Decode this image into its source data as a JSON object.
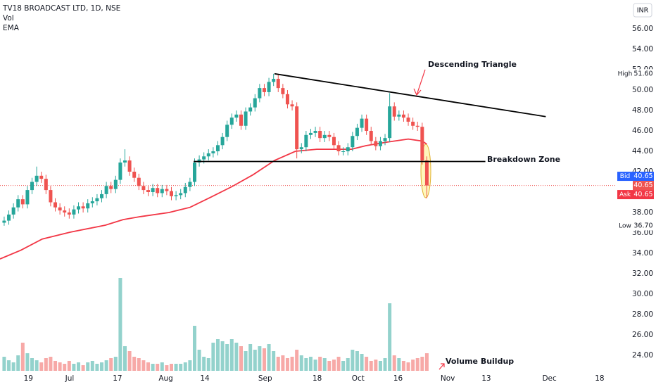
{
  "chart_data": {
    "type": "candlestick",
    "title": "TV18 BROADCAST LTD, 1D, NSE",
    "indicators": [
      "Vol",
      "EMA"
    ],
    "currency": "INR",
    "x": [
      0,
      1,
      2,
      3,
      4,
      5,
      6,
      7,
      8,
      9,
      10,
      11,
      12,
      13,
      14,
      15,
      16,
      17,
      18,
      19,
      20,
      21,
      22,
      23,
      24,
      25,
      26,
      27,
      28,
      29,
      30,
      31,
      32,
      33,
      34,
      35,
      36,
      37,
      38,
      39,
      40,
      41,
      42,
      43,
      44,
      45,
      46,
      47,
      48,
      49,
      50,
      51,
      52,
      53,
      54,
      55,
      56,
      57,
      58,
      59,
      60,
      61,
      62,
      63,
      64,
      65,
      66,
      67,
      68,
      69,
      70,
      71,
      72,
      73,
      74,
      75,
      76,
      77,
      78,
      79,
      80,
      81,
      82,
      83,
      84,
      85,
      86,
      87,
      88,
      89,
      90,
      91
    ],
    "open": [
      37.0,
      37.2,
      37.8,
      38.5,
      39.3,
      38.8,
      40.2,
      41.0,
      41.6,
      41.3,
      40.2,
      39.0,
      38.5,
      38.2,
      38.0,
      37.8,
      38.3,
      38.6,
      38.4,
      38.9,
      39.1,
      39.4,
      39.8,
      40.6,
      40.3,
      41.2,
      42.9,
      43.1,
      42.0,
      41.4,
      40.6,
      40.2,
      40.0,
      40.4,
      39.9,
      40.3,
      40.1,
      39.6,
      39.7,
      39.9,
      40.5,
      41.0,
      42.9,
      43.2,
      43.5,
      43.8,
      44.0,
      44.6,
      45.4,
      46.6,
      47.3,
      47.6,
      46.5,
      47.9,
      48.3,
      49.2,
      50.2,
      49.8,
      50.8,
      51.1,
      50.2,
      49.6,
      48.6,
      48.4,
      44.2,
      44.4,
      45.6,
      45.8,
      46.0,
      45.3,
      45.6,
      45.4,
      44.6,
      44.0,
      44.0,
      44.4,
      45.5,
      46.3,
      47.2,
      46.0,
      45.0,
      44.5,
      45.0,
      45.3,
      48.4,
      47.4,
      47.6,
      47.3,
      46.9,
      46.5,
      46.4,
      43.1
    ],
    "high": [
      37.6,
      38.2,
      38.9,
      39.7,
      39.7,
      40.6,
      41.4,
      42.5,
      42.0,
      41.7,
      40.6,
      39.4,
      38.9,
      38.6,
      38.4,
      38.7,
      39.0,
      39.0,
      39.3,
      39.5,
      39.8,
      40.2,
      41.0,
      41.0,
      41.6,
      43.3,
      44.2,
      43.5,
      42.4,
      41.8,
      41.0,
      40.6,
      40.8,
      40.8,
      40.7,
      40.7,
      40.5,
      40.1,
      40.3,
      40.9,
      41.4,
      43.3,
      43.6,
      43.9,
      44.2,
      44.4,
      45.0,
      45.8,
      47.0,
      47.7,
      48.0,
      48.0,
      48.3,
      48.7,
      49.6,
      50.6,
      50.6,
      51.2,
      51.6,
      51.5,
      50.6,
      50.0,
      49.0,
      48.8,
      44.8,
      46.0,
      46.2,
      46.4,
      46.4,
      46.0,
      46.0,
      45.8,
      45.0,
      44.4,
      44.8,
      45.9,
      46.7,
      47.6,
      47.6,
      46.4,
      45.4,
      45.4,
      45.7,
      49.7,
      48.8,
      48.0,
      48.0,
      47.7,
      47.3,
      46.9,
      46.8,
      43.5
    ],
    "low": [
      36.7,
      36.8,
      37.4,
      38.1,
      38.4,
      38.4,
      39.8,
      40.6,
      40.9,
      39.8,
      38.6,
      38.1,
      37.8,
      37.6,
      37.4,
      37.4,
      37.9,
      38.0,
      38.0,
      38.5,
      38.7,
      39.0,
      39.4,
      39.9,
      39.9,
      40.8,
      42.5,
      41.6,
      41.0,
      40.2,
      39.8,
      39.6,
      39.6,
      39.5,
      39.5,
      39.7,
      39.2,
      39.2,
      39.3,
      39.5,
      40.1,
      40.6,
      42.5,
      42.8,
      43.1,
      43.4,
      43.6,
      44.2,
      45.0,
      46.2,
      46.9,
      46.1,
      46.1,
      47.5,
      47.9,
      48.8,
      49.4,
      49.4,
      50.4,
      49.8,
      49.2,
      48.2,
      48.0,
      43.3,
      43.8,
      44.0,
      45.2,
      45.4,
      44.9,
      44.9,
      45.0,
      44.2,
      43.6,
      43.6,
      43.6,
      44.0,
      45.1,
      45.9,
      45.6,
      44.6,
      44.1,
      44.1,
      44.6,
      44.9,
      47.0,
      47.0,
      46.9,
      46.5,
      46.1,
      46.0,
      42.7,
      39.4
    ],
    "close": [
      37.2,
      37.8,
      38.5,
      39.3,
      38.8,
      40.2,
      41.0,
      41.6,
      41.3,
      40.2,
      39.0,
      38.5,
      38.2,
      38.0,
      37.8,
      38.3,
      38.6,
      38.4,
      38.9,
      39.1,
      39.4,
      39.8,
      40.6,
      40.3,
      41.2,
      42.9,
      43.1,
      42.0,
      41.4,
      40.6,
      40.2,
      40.0,
      40.4,
      39.9,
      40.3,
      40.1,
      39.6,
      39.7,
      39.9,
      40.5,
      41.0,
      42.9,
      43.2,
      43.5,
      43.8,
      44.0,
      44.6,
      45.4,
      46.6,
      47.3,
      47.6,
      46.5,
      47.9,
      48.3,
      49.2,
      50.2,
      49.8,
      50.8,
      51.1,
      50.2,
      49.6,
      48.6,
      48.4,
      44.2,
      44.4,
      45.6,
      45.8,
      46.0,
      45.3,
      45.6,
      45.4,
      44.6,
      44.0,
      44.0,
      44.4,
      45.5,
      46.3,
      47.2,
      46.0,
      45.0,
      44.5,
      45.0,
      45.3,
      48.4,
      47.4,
      47.6,
      47.3,
      46.9,
      46.5,
      46.4,
      43.1,
      40.65
    ],
    "volume": [
      20,
      15,
      12,
      22,
      40,
      25,
      18,
      15,
      12,
      18,
      20,
      14,
      12,
      10,
      14,
      10,
      12,
      8,
      12,
      14,
      10,
      12,
      15,
      18,
      20,
      132,
      35,
      28,
      20,
      18,
      15,
      12,
      10,
      10,
      12,
      8,
      10,
      10,
      10,
      12,
      15,
      64,
      30,
      20,
      18,
      40,
      45,
      42,
      38,
      45,
      40,
      35,
      28,
      38,
      30,
      35,
      32,
      38,
      28,
      20,
      22,
      18,
      20,
      30,
      22,
      18,
      20,
      16,
      20,
      18,
      14,
      16,
      20,
      14,
      18,
      30,
      28,
      24,
      20,
      14,
      16,
      14,
      18,
      96,
      22,
      18,
      14,
      12,
      16,
      18,
      20,
      25
    ],
    "volume_ylim": [
      0,
      140
    ],
    "up_color": "#26a69a",
    "down_color": "#ef5350",
    "volume_up_color": "#93d2cc",
    "volume_down_color": "#f7a9a7",
    "ema": {
      "color": "#f23645",
      "x": [
        -0.9,
        3.6,
        8.2,
        14.2,
        21.8,
        25.6,
        29.4,
        35.5,
        40,
        44.5,
        49.1,
        53.6,
        58.2,
        62.7,
        67.3,
        71.8,
        74.8,
        77.9,
        82.4,
        87,
        90,
        91
      ],
      "values": [
        33.45,
        34.3,
        35.4,
        36.07,
        36.76,
        37.3,
        37.6,
        38.0,
        38.5,
        39.5,
        40.55,
        41.7,
        43.1,
        44.0,
        44.2,
        44.2,
        44.2,
        44.55,
        44.9,
        45.2,
        45.0,
        44.7
      ]
    },
    "xlim": [
      -0.9,
      131.7
    ],
    "xticks": [
      {
        "value": 5.2,
        "label": "19"
      },
      {
        "value": 14.1,
        "label": "Jul"
      },
      {
        "value": 24.4,
        "label": "17"
      },
      {
        "value": 34.8,
        "label": "Aug"
      },
      {
        "value": 43.2,
        "label": "14"
      },
      {
        "value": 56.2,
        "label": "Sep"
      },
      {
        "value": 67.4,
        "label": "18"
      },
      {
        "value": 76.2,
        "label": "Oct"
      },
      {
        "value": 84.8,
        "label": "16"
      },
      {
        "value": 95.5,
        "label": "Nov"
      },
      {
        "value": 103.8,
        "label": "13"
      },
      {
        "value": 117.4,
        "label": "Dec"
      },
      {
        "value": 128.2,
        "label": "18"
      }
    ],
    "ylim": [
      22.48,
      58.83
    ],
    "yticks": [
      {
        "value": 56,
        "label": "56.00"
      },
      {
        "value": 54,
        "label": "54.00"
      },
      {
        "value": 52,
        "label": "52.00"
      },
      {
        "value": 50,
        "label": "50.00"
      },
      {
        "value": 48,
        "label": "48.00"
      },
      {
        "value": 46,
        "label": "46.00"
      },
      {
        "value": 44,
        "label": "44.00"
      },
      {
        "value": 42,
        "label": "42.00"
      },
      {
        "value": 38,
        "label": "38.00"
      },
      {
        "value": 36,
        "label": "36.00"
      },
      {
        "value": 34,
        "label": "34.00"
      },
      {
        "value": 32,
        "label": "32.00"
      },
      {
        "value": 30,
        "label": "30.00"
      },
      {
        "value": 28,
        "label": "28.00"
      },
      {
        "value": 26,
        "label": "26.00"
      },
      {
        "value": 24,
        "label": "24.00"
      }
    ],
    "price_markers": [
      {
        "name": "High",
        "value": 51.6,
        "label": "51.60"
      },
      {
        "name": "Low",
        "value": 36.7,
        "label": "36.70"
      },
      {
        "name": "Bid",
        "value": 40.65,
        "label": "40.65"
      },
      {
        "name": "Ask",
        "value": 40.65,
        "label": "40.65"
      }
    ],
    "last_price": {
      "value": 40.65,
      "label": "40.65"
    },
    "annotations": [
      {
        "text": "Descending Triangle",
        "points": [
          [
            58.2,
            51.6
          ],
          [
            116.6,
            47.4
          ]
        ]
      },
      {
        "text": "Breakdown Zone",
        "points": [
          [
            40.8,
            43.0
          ],
          [
            103.6,
            43.0
          ]
        ]
      },
      {
        "text": "Volume Buildup"
      }
    ]
  }
}
